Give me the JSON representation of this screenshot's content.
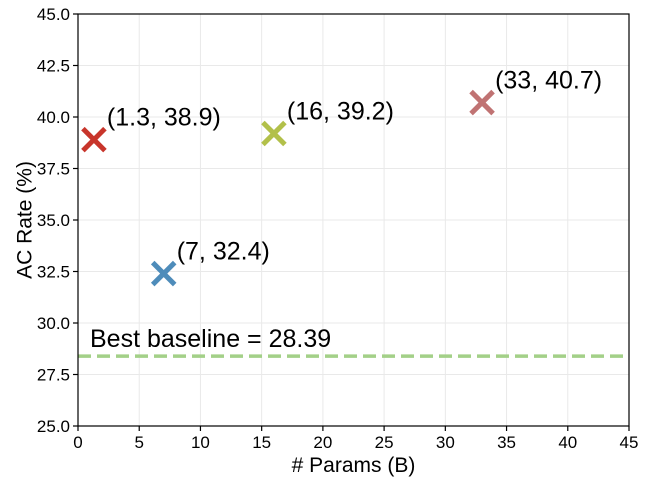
{
  "chart_data": {
    "type": "scatter",
    "title": "",
    "xlabel": "# Params (B)",
    "ylabel": "AC Rate (%)",
    "xlim": [
      0,
      45
    ],
    "ylim": [
      25.0,
      45.0
    ],
    "x_ticks": [
      0,
      5,
      10,
      15,
      20,
      25,
      30,
      35,
      40,
      45
    ],
    "x_tick_labels": [
      "0",
      "5",
      "10",
      "15",
      "20",
      "25",
      "30",
      "35",
      "40",
      "45"
    ],
    "y_ticks": [
      25.0,
      27.5,
      30.0,
      32.5,
      35.0,
      37.5,
      40.0,
      42.5,
      45.0
    ],
    "y_tick_labels": [
      "25.0",
      "27.5",
      "30.0",
      "32.5",
      "35.0",
      "37.5",
      "40.0",
      "42.5",
      "45.0"
    ],
    "grid": true,
    "marker": "x",
    "points": [
      {
        "x": 1.3,
        "y": 38.9,
        "label": "(1.3, 38.9)",
        "color": "#c8352b"
      },
      {
        "x": 7,
        "y": 32.4,
        "label": "(7, 32.4)",
        "color": "#4e8cba"
      },
      {
        "x": 16,
        "y": 39.2,
        "label": "(16, 39.2)",
        "color": "#b2c04a"
      },
      {
        "x": 33,
        "y": 40.7,
        "label": "(33, 40.7)",
        "color": "#c07373"
      }
    ],
    "baseline": {
      "value": 28.39,
      "label": "Best baseline = 28.39",
      "color": "#a3d088",
      "style": "dashed"
    }
  }
}
